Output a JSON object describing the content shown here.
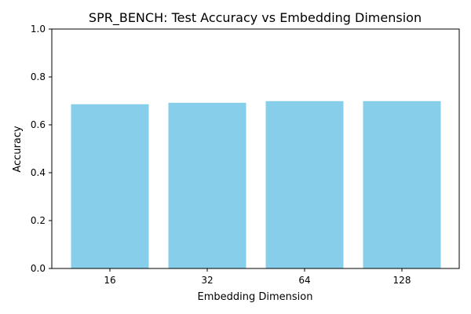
{
  "chart_data": {
    "type": "bar",
    "title": "SPR_BENCH: Test Accuracy vs Embedding Dimension",
    "xlabel": "Embedding Dimension",
    "ylabel": "Accuracy",
    "categories": [
      "16",
      "32",
      "64",
      "128"
    ],
    "values": [
      0.686,
      0.692,
      0.699,
      0.699
    ],
    "ylim": [
      0,
      1.0
    ],
    "yticks": [
      "0.0",
      "0.2",
      "0.4",
      "0.6",
      "0.8",
      "1.0"
    ],
    "grid": false,
    "bar_color": "#87CEEB"
  }
}
